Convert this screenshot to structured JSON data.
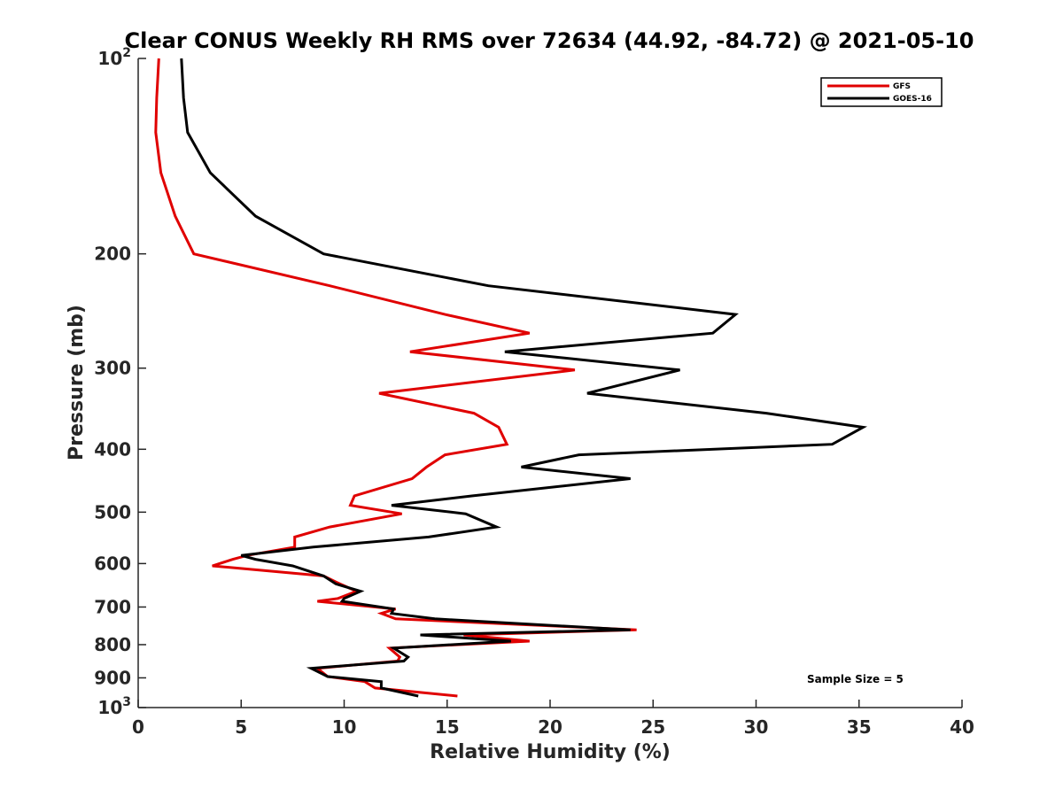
{
  "chart_data": {
    "type": "line",
    "title": "Clear CONUS Weekly RH RMS over 72634 (44.92, -84.72) @ 2021-05-10",
    "xlabel": "Relative Humidity (%)",
    "ylabel": "Pressure (mb)",
    "xlim": [
      0,
      40
    ],
    "ylim": [
      100,
      1000
    ],
    "yscale": "log",
    "y_reversed": true,
    "x_ticks": [
      0,
      5,
      10,
      15,
      20,
      25,
      30,
      35,
      40
    ],
    "x_tick_labels": [
      "0",
      "5",
      "10",
      "15",
      "20",
      "25",
      "30",
      "35",
      "40"
    ],
    "y_ticks": [
      100,
      200,
      300,
      400,
      500,
      600,
      700,
      800,
      900,
      1000
    ],
    "y_tick_labels": [
      {
        "base": "10",
        "exp": "2"
      },
      {
        "base": "200",
        "exp": ""
      },
      {
        "base": "300",
        "exp": ""
      },
      {
        "base": "400",
        "exp": ""
      },
      {
        "base": "500",
        "exp": ""
      },
      {
        "base": "600",
        "exp": ""
      },
      {
        "base": "700",
        "exp": ""
      },
      {
        "base": "800",
        "exp": ""
      },
      {
        "base": "900",
        "exp": ""
      },
      {
        "base": "10",
        "exp": "3"
      }
    ],
    "legend_position": "top-right",
    "annotation": "Sample Size = 5",
    "series": [
      {
        "name": "GFS",
        "color": "#e00000",
        "points": [
          [
            1.0,
            100
          ],
          [
            0.9,
            115
          ],
          [
            0.85,
            130
          ],
          [
            1.1,
            150
          ],
          [
            1.8,
            175
          ],
          [
            2.7,
            200
          ],
          [
            9.3,
            224
          ],
          [
            14.9,
            248
          ],
          [
            19.0,
            265
          ],
          [
            13.2,
            283
          ],
          [
            21.2,
            302
          ],
          [
            11.7,
            328
          ],
          [
            16.3,
            352
          ],
          [
            17.5,
            370
          ],
          [
            17.9,
            393
          ],
          [
            14.9,
            408
          ],
          [
            14.0,
            426
          ],
          [
            13.3,
            444
          ],
          [
            10.5,
            472
          ],
          [
            10.3,
            488
          ],
          [
            12.8,
            503
          ],
          [
            9.3,
            527
          ],
          [
            7.6,
            546
          ],
          [
            7.6,
            566
          ],
          [
            5.3,
            583
          ],
          [
            4.6,
            591
          ],
          [
            3.6,
            605
          ],
          [
            9.0,
            627
          ],
          [
            9.8,
            645
          ],
          [
            10.6,
            662
          ],
          [
            9.7,
            679
          ],
          [
            8.7,
            686
          ],
          [
            12.5,
            705
          ],
          [
            11.8,
            716
          ],
          [
            12.5,
            730
          ],
          [
            24.2,
            759
          ],
          [
            15.8,
            773
          ],
          [
            19.0,
            790
          ],
          [
            12.2,
            810
          ],
          [
            12.7,
            836
          ],
          [
            12.6,
            848
          ],
          [
            8.7,
            870
          ],
          [
            9.2,
            896
          ],
          [
            11.0,
            912
          ],
          [
            11.5,
            933
          ],
          [
            15.5,
            960
          ]
        ]
      },
      {
        "name": "GOES-16",
        "color": "#000000",
        "points": [
          [
            2.1,
            100
          ],
          [
            2.2,
            115
          ],
          [
            2.4,
            130
          ],
          [
            3.5,
            150
          ],
          [
            5.7,
            175
          ],
          [
            9.0,
            200
          ],
          [
            17.0,
            224
          ],
          [
            29.0,
            248
          ],
          [
            27.9,
            265
          ],
          [
            17.8,
            283
          ],
          [
            26.3,
            302
          ],
          [
            21.8,
            328
          ],
          [
            30.5,
            352
          ],
          [
            35.2,
            370
          ],
          [
            33.7,
            393
          ],
          [
            21.4,
            408
          ],
          [
            18.6,
            426
          ],
          [
            23.9,
            444
          ],
          [
            16.2,
            472
          ],
          [
            12.3,
            488
          ],
          [
            15.9,
            503
          ],
          [
            17.4,
            527
          ],
          [
            14.1,
            546
          ],
          [
            8.5,
            566
          ],
          [
            5.0,
            583
          ],
          [
            5.7,
            591
          ],
          [
            7.5,
            605
          ],
          [
            9.0,
            627
          ],
          [
            9.6,
            645
          ],
          [
            10.8,
            662
          ],
          [
            10.0,
            679
          ],
          [
            9.9,
            686
          ],
          [
            12.4,
            705
          ],
          [
            12.3,
            716
          ],
          [
            14.4,
            730
          ],
          [
            23.9,
            759
          ],
          [
            13.7,
            773
          ],
          [
            18.1,
            790
          ],
          [
            12.4,
            810
          ],
          [
            13.1,
            836
          ],
          [
            12.9,
            848
          ],
          [
            8.4,
            870
          ],
          [
            9.2,
            896
          ],
          [
            11.8,
            912
          ],
          [
            11.8,
            933
          ],
          [
            13.6,
            960
          ]
        ]
      }
    ]
  }
}
